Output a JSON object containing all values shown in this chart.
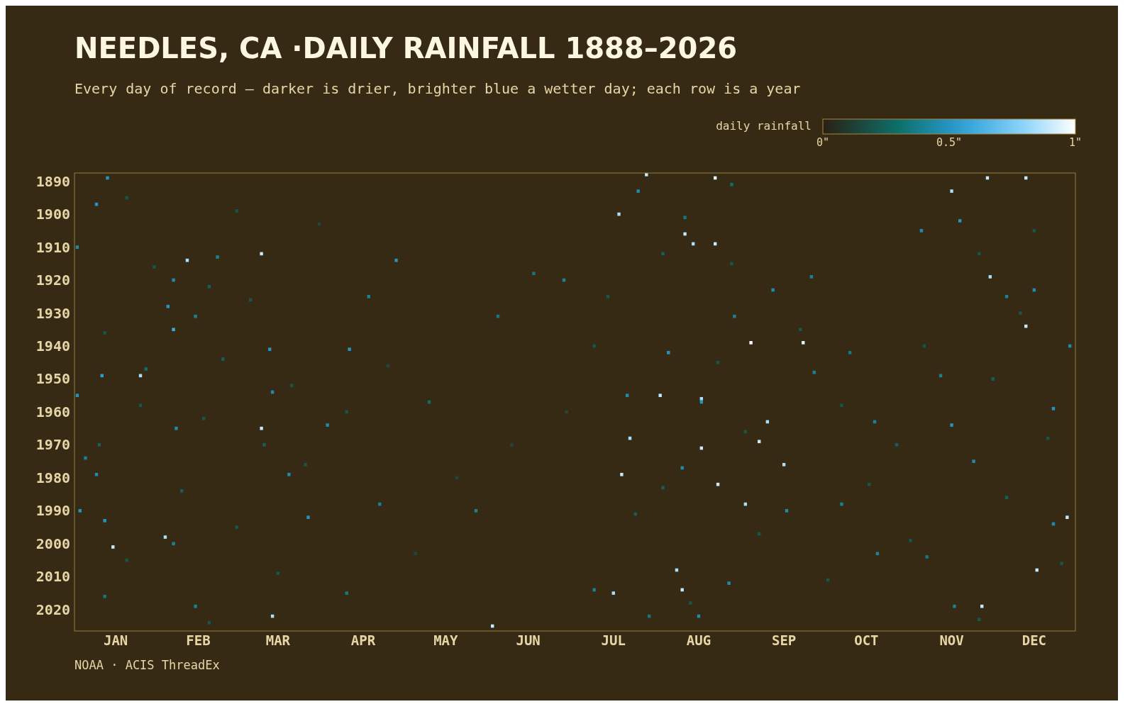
{
  "chart_data": {
    "type": "scatter",
    "title": "NEEDLES, CA ·DAILY RAINFALL 1888–2026",
    "subtitle": "Every day of record — darker is drier, brighter blue a wetter day; each row is a year",
    "clabel": "daily rainfall",
    "clim": [
      0,
      1
    ],
    "cticks": [
      {
        "value": 0,
        "label": "0\""
      },
      {
        "value": 0.5,
        "label": "0.5\""
      },
      {
        "value": 1,
        "label": "1\""
      }
    ],
    "annotations": [
      "NOAA · ACIS ThreadEx"
    ],
    "marker": "square",
    "grid": false,
    "xlim": [
      "--01-01",
      "--12-31"
    ],
    "ylim": [
      2026.5,
      1887.5
    ],
    "xticks": [
      {
        "value": "--01-16",
        "label": "JAN"
      },
      {
        "value": "--02-15",
        "label": "FEB"
      },
      {
        "value": "--03-16",
        "label": "MAR"
      },
      {
        "value": "--04-16",
        "label": "APR"
      },
      {
        "value": "--05-16",
        "label": "MAY"
      },
      {
        "value": "--06-15",
        "label": "JUN"
      },
      {
        "value": "--07-16",
        "label": "JUL"
      },
      {
        "value": "--08-16",
        "label": "AUG"
      },
      {
        "value": "--09-16",
        "label": "SEP"
      },
      {
        "value": "--10-16",
        "label": "OCT"
      },
      {
        "value": "--11-16",
        "label": "NOV"
      },
      {
        "value": "--12-16",
        "label": "DEC"
      }
    ],
    "yticks": [
      1890,
      1900,
      1910,
      1920,
      1930,
      1940,
      1950,
      1960,
      1970,
      1980,
      1990,
      2000,
      2010,
      2020
    ],
    "x": [
      "--07-28",
      "--08-22",
      "--11-29",
      "--12-13",
      "--11-16",
      "--07-18",
      "--08-11",
      "--08-22",
      "--08-14",
      "--11-30",
      "--03-10",
      "--02-11",
      "--09-23",
      "--09-04",
      "--12-13",
      "--01-25",
      "--08-02",
      "--08-17",
      "--09-10",
      "--03-10",
      "--07-22",
      "--09-07",
      "--08-17",
      "--09-16",
      "--07-19",
      "--08-23",
      "--09-02",
      "--12-28",
      "--02-03",
      "--01-15",
      "--08-08",
      "--12-17",
      "--07-16",
      "--11-27",
      "--03-14",
      "--06-02",
      "--08-10",
      "--01-13",
      "--01-02",
      "--01-09",
      "--02-22",
      "--02-06",
      "--02-04",
      "--02-06",
      "--02-14",
      "--01-11",
      "--01-02",
      "--02-07",
      "--01-05",
      "--01-09",
      "--01-03",
      "--01-12",
      "--02-06",
      "--03-14",
      "--03-13",
      "--03-20",
      "--03-27",
      "--04-11",
      "--04-28",
      "--06-04",
      "--04-03",
      "--04-18",
      "--06-17",
      "--06-28",
      "--07-25",
      "--08-05",
      "--08-17",
      "--08-10",
      "--08-27",
      "--09-27",
      "--09-12",
      "--08-29",
      "--09-26",
      "--10-19",
      "--10-10",
      "--11-05",
      "--11-19",
      "--11-12",
      "--11-16",
      "--11-24",
      "--12-06",
      "--12-16",
      "--12-23",
      "--12-29",
      "--12-23",
      "--10-20",
      "--11-07",
      "--11-17",
      "--10-07",
      "--09-17",
      "--07-21",
      "--07-29",
      "--08-16",
      "--07-09",
      "--05-10",
      "--05-27",
      "--04-22",
      "--04-10",
      "--02-14",
      "--01-12",
      "--01-27",
      "--08-28",
      "--08-11",
      "--01-20",
      "--03-01",
      "--03-31",
      "--01-30",
      "--02-19",
      "--03-06",
      "--01-12",
      "--02-24",
      "--03-21",
      "--01-25",
      "--02-17",
      "--03-11",
      "--03-26",
      "--02-09",
      "--03-01",
      "--01-20",
      "--03-16",
      "--02-19",
      "--04-25",
      "--05-20",
      "--05-05",
      "--06-29",
      "--07-14",
      "--08-03",
      "--08-23",
      "--09-02",
      "--08-03",
      "--09-07",
      "--08-13",
      "--09-22",
      "--10-07",
      "--10-27",
      "--10-17",
      "--11-01",
      "--11-26",
      "--12-11",
      "--12-01",
      "--12-21",
      "--12-06",
      "--12-26",
      "--11-26",
      "--11-06",
      "--10-02",
      "--07-24",
      "--07-09",
      "--06-09",
      "--04-10",
      "--01-10",
      "--12-16",
      "--08-28"
    ],
    "values": [
      1888,
      1889,
      1889,
      1889,
      1893,
      1900,
      1906,
      1909,
      1909,
      1919,
      1912,
      1914,
      1939,
      1939,
      1934,
      1949,
      1955,
      1956,
      1963,
      1965,
      1968,
      1969,
      1971,
      1976,
      1979,
      1982,
      1988,
      1992,
      1998,
      2001,
      2008,
      2008,
      2015,
      2019,
      2022,
      2025,
      2014,
      1889,
      1910,
      1897,
      1913,
      1920,
      1928,
      1935,
      1931,
      1949,
      1955,
      1965,
      1974,
      1979,
      1990,
      1993,
      2000,
      1954,
      1941,
      1979,
      1992,
      1941,
      1914,
      1931,
      1964,
      1925,
      1918,
      1920,
      1893,
      1942,
      1957,
      1977,
      2012,
      1948,
      1923,
      1931,
      1919,
      1963,
      1942,
      1905,
      1902,
      1949,
      1964,
      1975,
      1925,
      1923,
      1959,
      1940,
      1994,
      2003,
      2004,
      2019,
      1988,
      1990,
      1955,
      2022,
      2022,
      2014,
      1957,
      1990,
      1988,
      2015,
      2019,
      2016,
      1947,
      1891,
      1901,
      1895,
      1899,
      1903,
      1916,
      1922,
      1926,
      1936,
      1944,
      1952,
      1958,
      1962,
      1970,
      1976,
      1984,
      1995,
      2005,
      2009,
      2024,
      1946,
      1980,
      2003,
      1960,
      1925,
      1912,
      1945,
      1966,
      1983,
      1997,
      2018,
      1935,
      1958,
      1970,
      1982,
      1999,
      1912,
      1930,
      1950,
      1968,
      1986,
      2006,
      2023,
      1940,
      2011,
      1991,
      1940,
      1970,
      1960,
      1970,
      1905,
      1915
    ],
    "cvalues": [
      0.9,
      0.95,
      0.9,
      0.9,
      0.85,
      0.85,
      0.9,
      0.9,
      0.85,
      0.85,
      0.9,
      0.85,
      0.95,
      1,
      0.9,
      0.85,
      0.9,
      0.85,
      0.85,
      0.9,
      0.85,
      0.9,
      0.9,
      0.85,
      0.9,
      0.9,
      0.85,
      0.9,
      0.85,
      0.9,
      0.85,
      0.9,
      0.85,
      0.9,
      0.85,
      0.9,
      0.9,
      0.5,
      0.45,
      0.5,
      0.4,
      0.45,
      0.5,
      0.6,
      0.4,
      0.55,
      0.5,
      0.45,
      0.4,
      0.45,
      0.5,
      0.5,
      0.4,
      0.45,
      0.5,
      0.45,
      0.5,
      0.5,
      0.5,
      0.35,
      0.45,
      0.4,
      0.35,
      0.4,
      0.45,
      0.5,
      0.5,
      0.45,
      0.45,
      0.4,
      0.45,
      0.4,
      0.4,
      0.4,
      0.35,
      0.45,
      0.5,
      0.4,
      0.5,
      0.45,
      0.4,
      0.45,
      0.5,
      0.45,
      0.45,
      0.4,
      0.35,
      0.4,
      0.4,
      0.45,
      0.45,
      0.35,
      0.45,
      0.4,
      0.3,
      0.4,
      0.4,
      0.35,
      0.4,
      0.35,
      0.3,
      0.3,
      0.35,
      0.2,
      0.2,
      0.15,
      0.2,
      0.25,
      0.2,
      0.2,
      0.25,
      0.2,
      0.2,
      0.2,
      0.25,
      0.2,
      0.25,
      0.2,
      0.2,
      0.2,
      0.2,
      0.15,
      0.15,
      0.15,
      0.15,
      0.2,
      0.25,
      0.2,
      0.2,
      0.25,
      0.2,
      0.2,
      0.2,
      0.2,
      0.25,
      0.2,
      0.2,
      0.2,
      0.2,
      0.25,
      0.2,
      0.25,
      0.2,
      0.2,
      0.2,
      0.2,
      0.25,
      0.2,
      0.15,
      0.2,
      0.25,
      0.2,
      0.2
    ]
  }
}
